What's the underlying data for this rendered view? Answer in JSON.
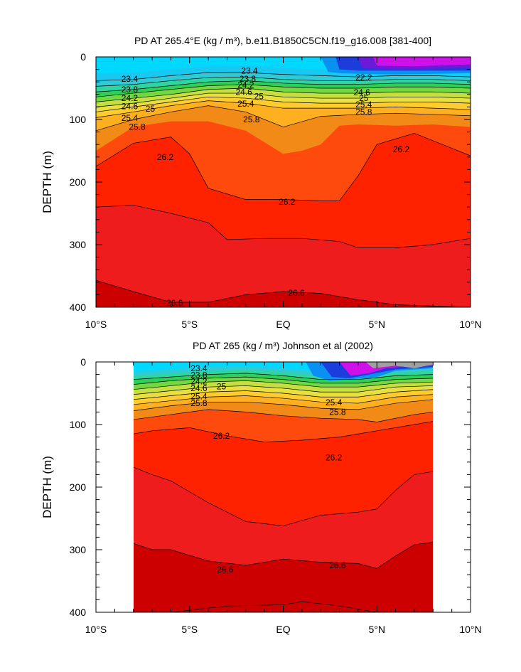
{
  "chart_data": [
    {
      "type": "heatmap",
      "panel": "model",
      "title": "PD AT 265.4°E (kg / m³), b.e11.B1850C5CN.f19_g16.008 [381-400]",
      "ylabel": "DEPTH (m)",
      "xlabel": "",
      "x_range": [
        -10,
        10
      ],
      "y_range": [
        0,
        400
      ],
      "x_ticks": [
        "10°S",
        "5°S",
        "EQ",
        "5°N",
        "10°N"
      ],
      "y_ticks": [
        "0",
        "100",
        "200",
        "300",
        "400"
      ],
      "contour_labels": [
        {
          "text": "23.4",
          "x": -8.2,
          "y": 35
        },
        {
          "text": "23.8",
          "x": -8.2,
          "y": 52
        },
        {
          "text": "24.2",
          "x": -8.2,
          "y": 66
        },
        {
          "text": "24.6",
          "x": -8.2,
          "y": 79
        },
        {
          "text": "25",
          "x": -7.1,
          "y": 83
        },
        {
          "text": "25.4",
          "x": -8.2,
          "y": 98
        },
        {
          "text": "25.8",
          "x": -7.8,
          "y": 112
        },
        {
          "text": "23.4",
          "x": -1.8,
          "y": 22
        },
        {
          "text": "23.8",
          "x": -1.9,
          "y": 35
        },
        {
          "text": "24.2",
          "x": -2.0,
          "y": 45
        },
        {
          "text": "24.6",
          "x": -2.1,
          "y": 56
        },
        {
          "text": "25",
          "x": -1.3,
          "y": 63
        },
        {
          "text": "25.4",
          "x": -2.0,
          "y": 75
        },
        {
          "text": "25.8",
          "x": -1.7,
          "y": 100
        },
        {
          "text": "22.2",
          "x": 4.3,
          "y": 33
        },
        {
          "text": "24.6",
          "x": 4.2,
          "y": 57
        },
        {
          "text": "25",
          "x": 4.3,
          "y": 66
        },
        {
          "text": "25.4",
          "x": 4.3,
          "y": 76
        },
        {
          "text": "25.8",
          "x": 4.3,
          "y": 88
        },
        {
          "text": "26.2",
          "x": -6.3,
          "y": 160
        },
        {
          "text": "26.2",
          "x": 0.2,
          "y": 232
        },
        {
          "text": "26.2",
          "x": 6.3,
          "y": 148
        },
        {
          "text": "26.6",
          "x": -5.8,
          "y": 393
        },
        {
          "text": "26.6",
          "x": 0.7,
          "y": 377
        }
      ]
    },
    {
      "type": "heatmap",
      "panel": "observations",
      "title": "PD AT 265 (kg / m³) Johnson et al (2002)",
      "ylabel": "DEPTH (m)",
      "xlabel": "",
      "x_range": [
        -10,
        10
      ],
      "y_range": [
        0,
        400
      ],
      "data_x_extent": [
        -8,
        8
      ],
      "x_ticks": [
        "10°S",
        "5°S",
        "EQ",
        "5°N",
        "10°N"
      ],
      "y_ticks": [
        "0",
        "100",
        "200",
        "300",
        "400"
      ],
      "contour_labels": [
        {
          "text": "23.4",
          "x": -4.5,
          "y": 10
        },
        {
          "text": "23.8",
          "x": -4.5,
          "y": 21
        },
        {
          "text": "24.2",
          "x": -4.5,
          "y": 31
        },
        {
          "text": "24.6",
          "x": -4.5,
          "y": 42
        },
        {
          "text": "25",
          "x": -3.3,
          "y": 39
        },
        {
          "text": "25.4",
          "x": -4.5,
          "y": 55
        },
        {
          "text": "25.8",
          "x": -4.5,
          "y": 66
        },
        {
          "text": "25.4",
          "x": 2.7,
          "y": 65
        },
        {
          "text": "25.8",
          "x": 2.9,
          "y": 80
        },
        {
          "text": "26.2",
          "x": -3.3,
          "y": 118
        },
        {
          "text": "26.2",
          "x": 2.7,
          "y": 153
        },
        {
          "text": "26.6",
          "x": -3.1,
          "y": 332
        },
        {
          "text": "26.6",
          "x": 2.9,
          "y": 325
        }
      ]
    }
  ]
}
